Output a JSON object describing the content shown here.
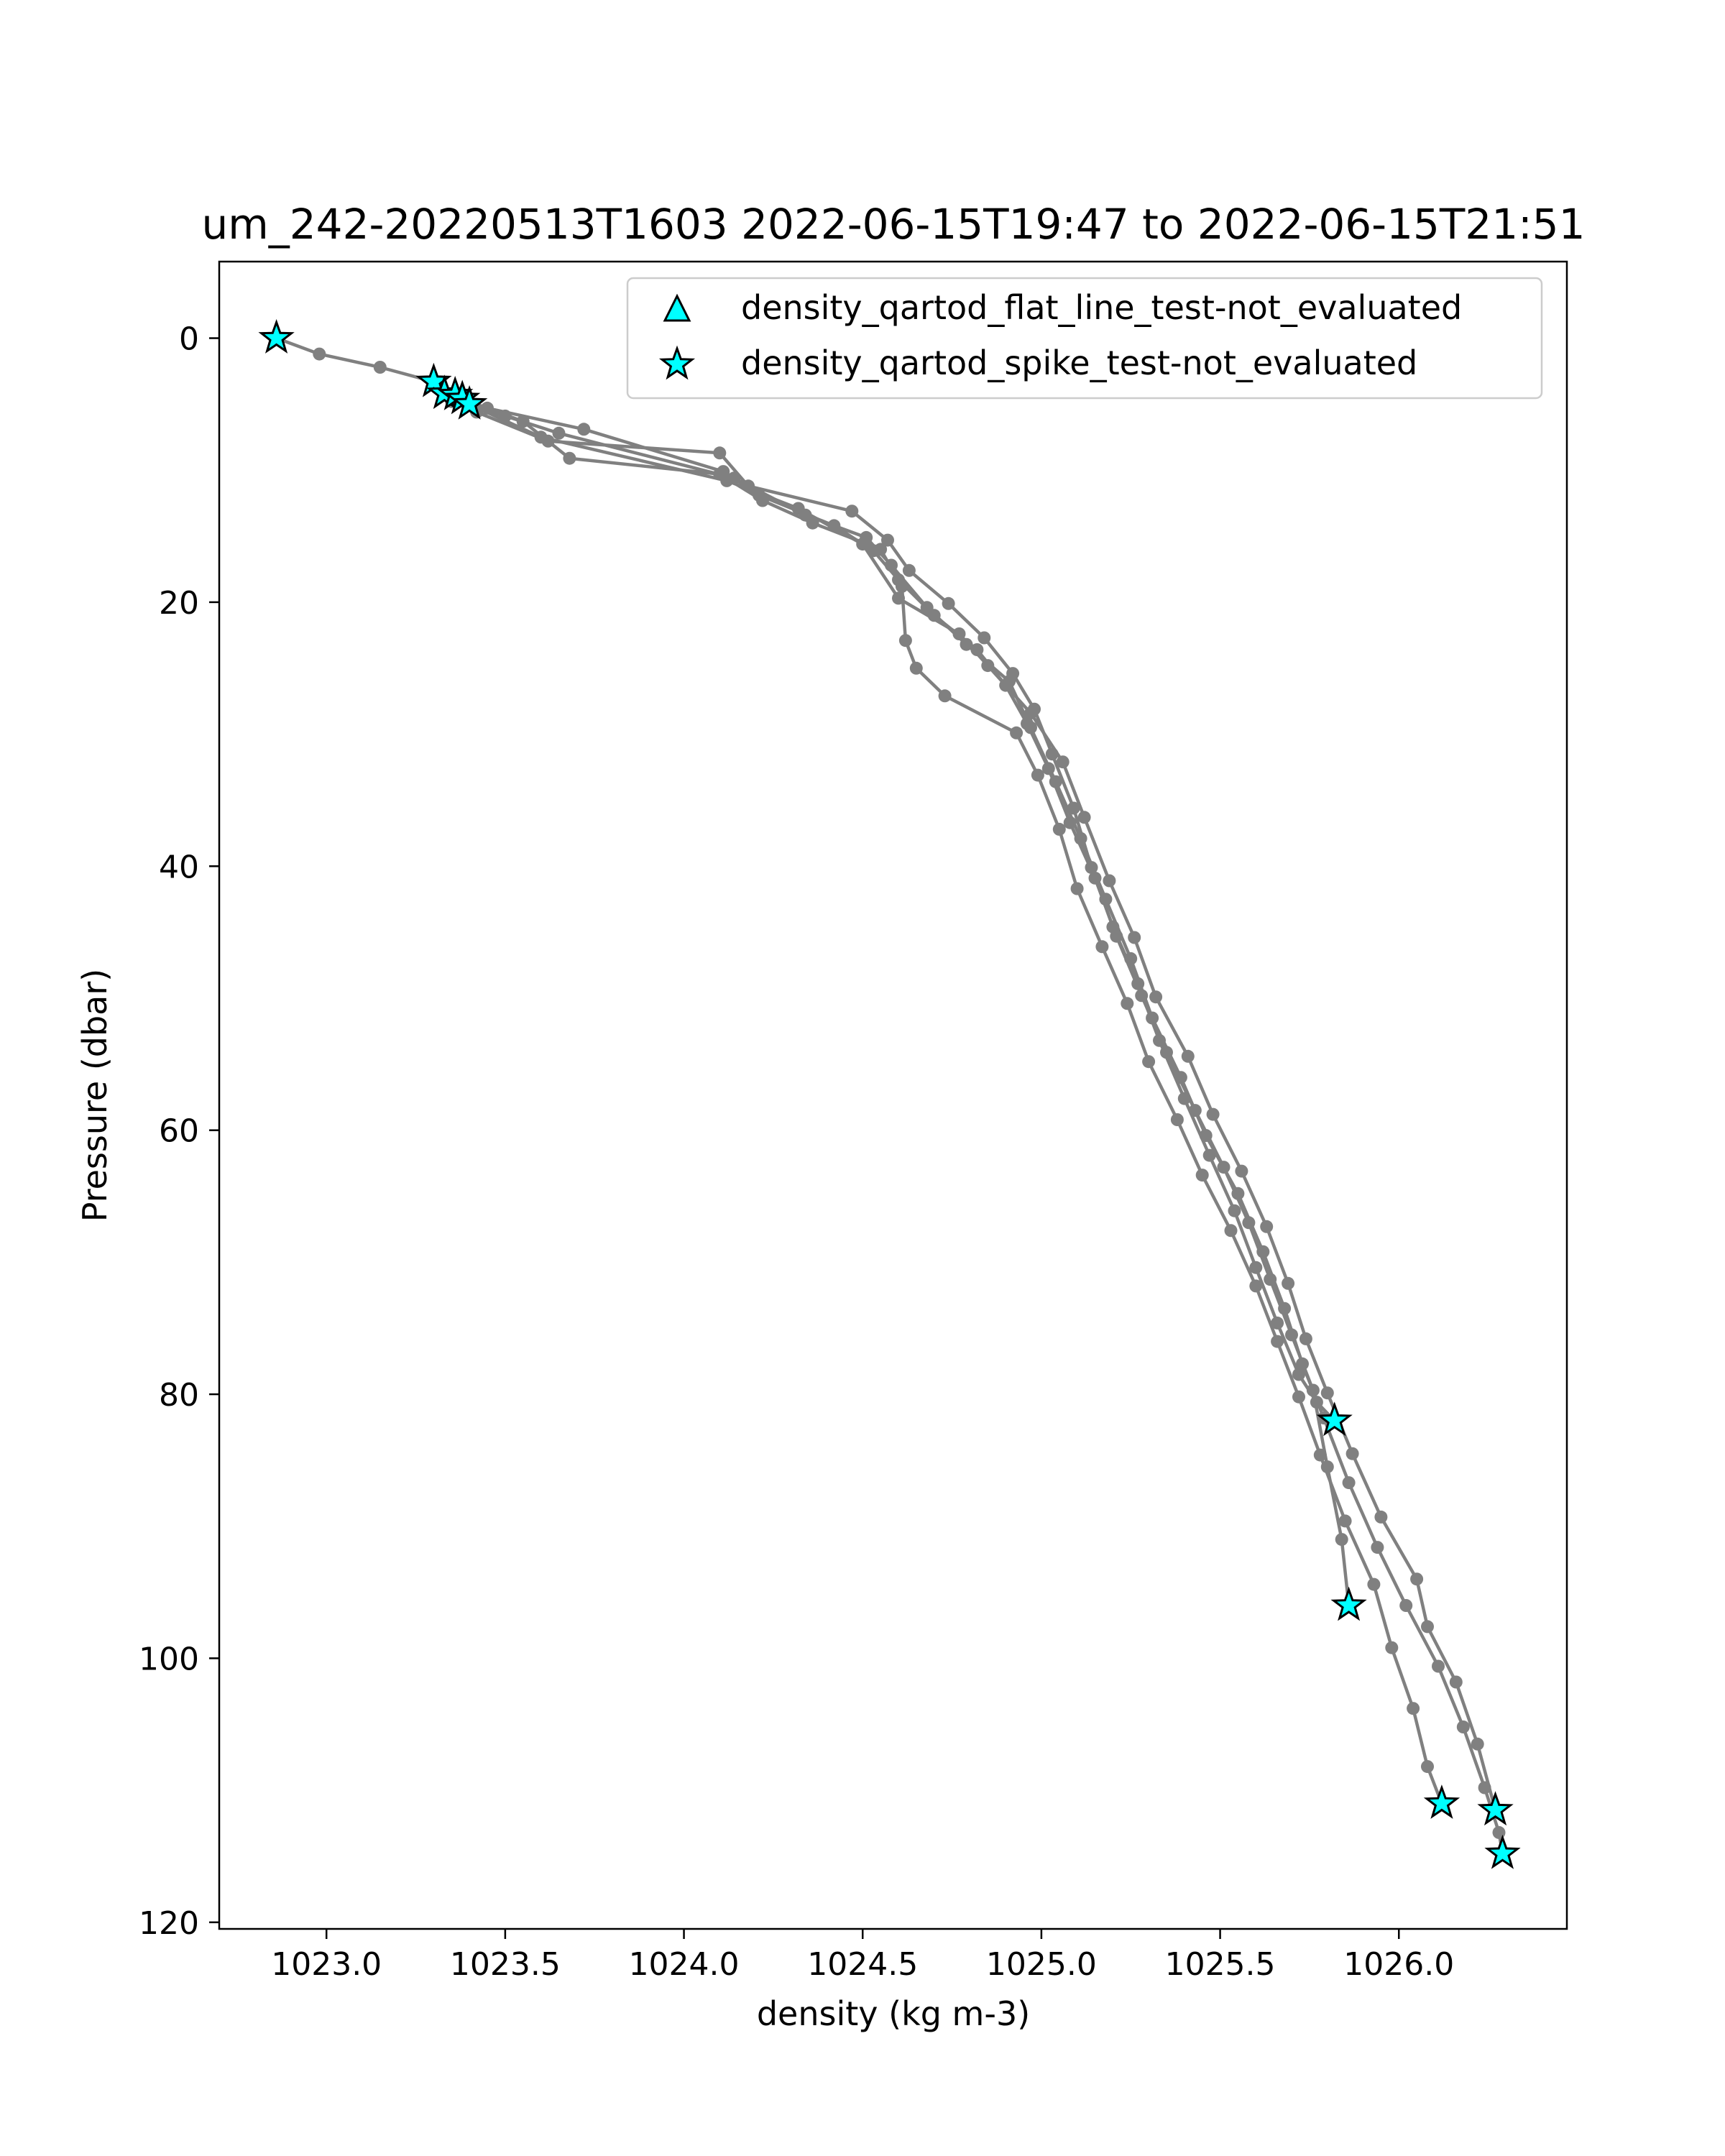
{
  "chart_data": {
    "type": "line",
    "title": "um_242-20220513T1603 2022-06-15T19:47 to 2022-06-15T21:51",
    "xlabel": "density (kg m-3)",
    "ylabel": "Pressure (dbar)",
    "xlim": [
      1022.7,
      1026.47
    ],
    "ylim": [
      120.5,
      -5.8
    ],
    "y_inverted": true,
    "grid": false,
    "legend_position": "top-right",
    "xticks": [
      1023.0,
      1023.5,
      1024.0,
      1024.5,
      1025.0,
      1025.5,
      1026.0
    ],
    "xtick_labels": [
      "1023.0",
      "1023.5",
      "1024.0",
      "1024.5",
      "1025.0",
      "1025.5",
      "1026.0"
    ],
    "yticks": [
      0,
      20,
      40,
      60,
      80,
      100,
      120
    ],
    "ytick_labels": [
      "0",
      "20",
      "40",
      "60",
      "80",
      "100",
      "120"
    ],
    "colors": {
      "profile_line": "#808080",
      "flag_marker_fill": "#00ffff",
      "flag_marker_edge": "#000000"
    },
    "legend": [
      {
        "label": "density_qartod_flat_line_test-not_evaluated",
        "marker": "triangle"
      },
      {
        "label": "density_qartod_spike_test-not_evaluated",
        "marker": "star"
      }
    ],
    "series": [
      {
        "x": [
          1022.86,
          1022.98,
          1023.15,
          1023.3,
          1023.36,
          1023.42,
          1023.62,
          1024.1,
          1024.18,
          1024.47,
          1024.57,
          1024.63,
          1024.74,
          1024.84,
          1024.92,
          1024.98,
          1025.03,
          1025.09,
          1025.14,
          1025.2,
          1025.27,
          1025.33,
          1025.4,
          1025.47,
          1025.54,
          1025.6,
          1025.66,
          1025.72,
          1025.77,
          1025.82
        ],
        "y": [
          0,
          1.2,
          2.2,
          3.3,
          4.3,
          5.6,
          7.8,
          8.7,
          11.2,
          13.1,
          15.3,
          17.6,
          20.1,
          22.7,
          25.4,
          28.1,
          31.5,
          35.6,
          40.1,
          44.6,
          48.9,
          53.2,
          57.6,
          61.9,
          66.1,
          70.4,
          74.6,
          78.5,
          80.6,
          82.0
        ]
      },
      {
        "x": [
          1023.33,
          1023.45,
          1023.72,
          1024.11,
          1024.21,
          1024.42,
          1024.53,
          1024.6,
          1024.7,
          1024.82,
          1024.9,
          1024.96,
          1025.02,
          1025.08,
          1025.15,
          1025.21,
          1025.28,
          1025.35,
          1025.43,
          1025.51,
          1025.58,
          1025.64,
          1025.7,
          1025.76,
          1025.8,
          1025.84,
          1025.86
        ],
        "y": [
          4.2,
          5.3,
          6.9,
          10.1,
          11.9,
          14.2,
          16.1,
          18.3,
          21.0,
          23.6,
          26.3,
          29.2,
          32.6,
          36.7,
          40.9,
          45.3,
          49.8,
          54.1,
          58.5,
          62.8,
          67.0,
          71.3,
          75.5,
          79.7,
          85.5,
          91.0,
          96.0
        ]
      },
      {
        "x": [
          1023.38,
          1023.55,
          1023.68,
          1024.1,
          1024.22,
          1024.36,
          1024.55,
          1024.61,
          1024.62,
          1024.65,
          1024.73,
          1024.93,
          1024.99,
          1025.05,
          1025.1,
          1025.17,
          1025.24,
          1025.3,
          1025.38,
          1025.45,
          1025.53,
          1025.6,
          1025.66,
          1025.72,
          1025.78,
          1025.85,
          1025.93,
          1025.98,
          1026.04,
          1026.08,
          1026.12
        ],
        "y": [
          4.6,
          6.3,
          9.1,
          10.3,
          12.3,
          14.0,
          16.0,
          18.8,
          22.9,
          25.0,
          27.1,
          29.9,
          33.1,
          37.2,
          41.7,
          46.1,
          50.4,
          54.8,
          59.2,
          63.4,
          67.6,
          71.8,
          76.0,
          80.2,
          84.6,
          89.6,
          94.4,
          99.2,
          103.8,
          108.2,
          111.0
        ]
      },
      {
        "x": [
          1023.4,
          1023.6,
          1024.12,
          1024.32,
          1024.5,
          1024.6,
          1024.77,
          1024.85,
          1024.97,
          1025.06,
          1025.12,
          1025.19,
          1025.26,
          1025.32,
          1025.41,
          1025.48,
          1025.56,
          1025.63,
          1025.69,
          1025.74,
          1025.8,
          1025.87,
          1025.95,
          1026.05,
          1026.08,
          1026.16,
          1026.22,
          1026.27
        ],
        "y": [
          5.0,
          7.5,
          10.8,
          12.9,
          15.6,
          19.7,
          22.4,
          24.8,
          28.4,
          32.1,
          36.3,
          41.1,
          45.4,
          49.9,
          54.4,
          58.8,
          63.1,
          67.3,
          71.6,
          75.8,
          79.9,
          84.5,
          89.3,
          94.0,
          97.6,
          101.8,
          106.5,
          111.5
        ]
      },
      {
        "x": [
          1023.35,
          1023.5,
          1023.65,
          1024.14,
          1024.34,
          1024.51,
          1024.58,
          1024.68,
          1024.79,
          1024.91,
          1024.97,
          1025.04,
          1025.11,
          1025.18,
          1025.25,
          1025.31,
          1025.39,
          1025.46,
          1025.55,
          1025.62,
          1025.68,
          1025.73,
          1025.79,
          1025.86,
          1025.94,
          1026.02,
          1026.11,
          1026.18,
          1026.24,
          1026.28,
          1026.29
        ],
        "y": [
          4.8,
          5.9,
          7.2,
          10.6,
          13.4,
          15.1,
          17.2,
          20.4,
          23.2,
          26.0,
          29.5,
          33.6,
          37.9,
          42.5,
          47.0,
          51.5,
          56.0,
          60.4,
          64.8,
          69.2,
          73.5,
          77.7,
          81.8,
          86.7,
          91.6,
          96.0,
          100.6,
          105.2,
          109.8,
          113.2,
          114.8
        ]
      }
    ],
    "flagged_points": {
      "label": "density_qartod_spike_test-not_evaluated",
      "x": [
        1022.86,
        1023.3,
        1023.33,
        1023.36,
        1023.38,
        1023.4,
        1025.82,
        1025.86,
        1026.12,
        1026.27,
        1026.29
      ],
      "y": [
        0,
        3.3,
        4.2,
        4.3,
        4.6,
        5.0,
        82.0,
        96.0,
        111.0,
        111.5,
        114.8
      ]
    }
  }
}
